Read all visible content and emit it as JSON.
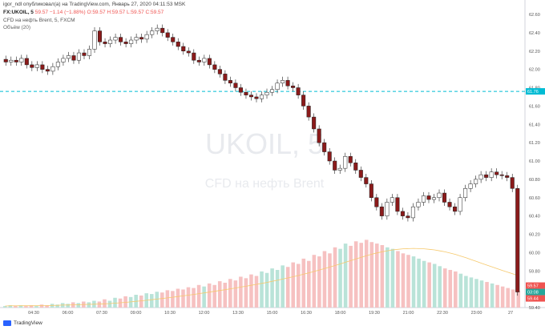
{
  "header": {
    "published": "igor_ndl опубликовал(а) на TradingView.com, Январь 27, 2020 04:11:53 MSK",
    "symbol": "FX:UKOIL, 5",
    "quote_main": "59.57",
    "change": "−1.14 (−1.88%)",
    "ohlc_o": "O:59.57",
    "ohlc_h": "H:59.57",
    "ohlc_l": "L:59.57",
    "ohlc_c": "C:59.57",
    "instrument": "CFD на нефть Brent, 5, FXCM",
    "volume_label": "Объём (20)"
  },
  "watermark": {
    "symbol": "UKOIL, 5",
    "description": "CFD на нефть Brent"
  },
  "footer": {
    "brand": "TradingView"
  },
  "colors": {
    "up": "#26a69a",
    "down": "#ef5350",
    "up_candle_fill": "#ffffff",
    "down_candle_fill": "#8b1a1a",
    "level_line": "#00bcd4",
    "volume_up": "#b9e3d8",
    "volume_down": "#f6c1c1",
    "volume_ma": "#f6c96c"
  },
  "chart_data": {
    "type": "candlestick",
    "ylim": [
      59.4,
      62.6
    ],
    "y_ticks": [
      "62.60",
      "62.40",
      "62.20",
      "62.00",
      "61.80",
      "61.60",
      "61.40",
      "61.20",
      "61.00",
      "60.80",
      "60.60",
      "60.40",
      "60.20",
      "60.00",
      "59.80",
      "59.60",
      "59.40"
    ],
    "x_ticks": [
      "04:30",
      "06:00",
      "07:30",
      "09:00",
      "10:30",
      "12:00",
      "13:30",
      "15:00",
      "16:30",
      "18:00",
      "19:30",
      "21:00",
      "22:30",
      "23:00",
      "27"
    ],
    "level_line": {
      "value": "61.76"
    },
    "last_price_labels": [
      "59.57",
      "03:08",
      "59.44"
    ],
    "price_path": [
      62.08,
      62.1,
      62.08,
      62.12,
      62.05,
      62.02,
      62.05,
      62.0,
      61.98,
      62.03,
      62.08,
      62.12,
      62.15,
      62.1,
      62.18,
      62.15,
      62.22,
      62.42,
      62.3,
      62.28,
      62.32,
      62.35,
      62.3,
      62.28,
      62.32,
      62.35,
      62.33,
      62.38,
      62.42,
      62.45,
      62.4,
      62.35,
      62.3,
      62.25,
      62.2,
      62.18,
      62.1,
      62.08,
      62.12,
      62.05,
      62.0,
      61.95,
      61.88,
      61.85,
      61.8,
      61.75,
      61.72,
      61.7,
      61.68,
      61.72,
      61.75,
      61.78,
      61.85,
      61.88,
      61.82,
      61.8,
      61.72,
      61.6,
      61.48,
      61.35,
      61.2,
      61.1,
      61.0,
      60.9,
      60.92,
      61.05,
      60.98,
      60.9,
      60.82,
      60.75,
      60.6,
      60.5,
      60.4,
      60.55,
      60.6,
      60.45,
      60.4,
      60.38,
      60.5,
      60.55,
      60.62,
      60.58,
      60.6,
      60.65,
      60.55,
      60.5,
      60.45,
      60.6,
      60.7,
      60.75,
      60.8,
      60.85,
      60.82,
      60.88,
      60.85,
      60.84,
      60.82,
      60.7,
      59.57
    ],
    "volume_values": [
      2,
      3,
      2,
      3,
      2,
      3,
      2,
      4,
      3,
      5,
      4,
      6,
      5,
      7,
      6,
      8,
      7,
      9,
      8,
      11,
      9,
      13,
      12,
      15,
      14,
      17,
      16,
      19,
      18,
      21,
      20,
      23,
      22,
      25,
      24,
      27,
      26,
      30,
      28,
      32,
      30,
      35,
      33,
      38,
      36,
      41,
      39,
      44,
      42,
      48,
      46,
      52,
      50,
      56,
      54,
      60,
      58,
      65,
      62,
      70,
      68,
      75,
      72,
      80,
      78,
      85,
      82,
      88,
      86,
      90,
      87,
      85,
      83,
      80,
      78,
      75,
      72,
      70,
      68,
      65,
      62,
      60,
      58,
      55,
      52,
      50,
      48,
      45,
      42,
      40,
      38,
      36,
      34,
      32,
      30,
      28,
      26,
      24,
      22
    ]
  }
}
